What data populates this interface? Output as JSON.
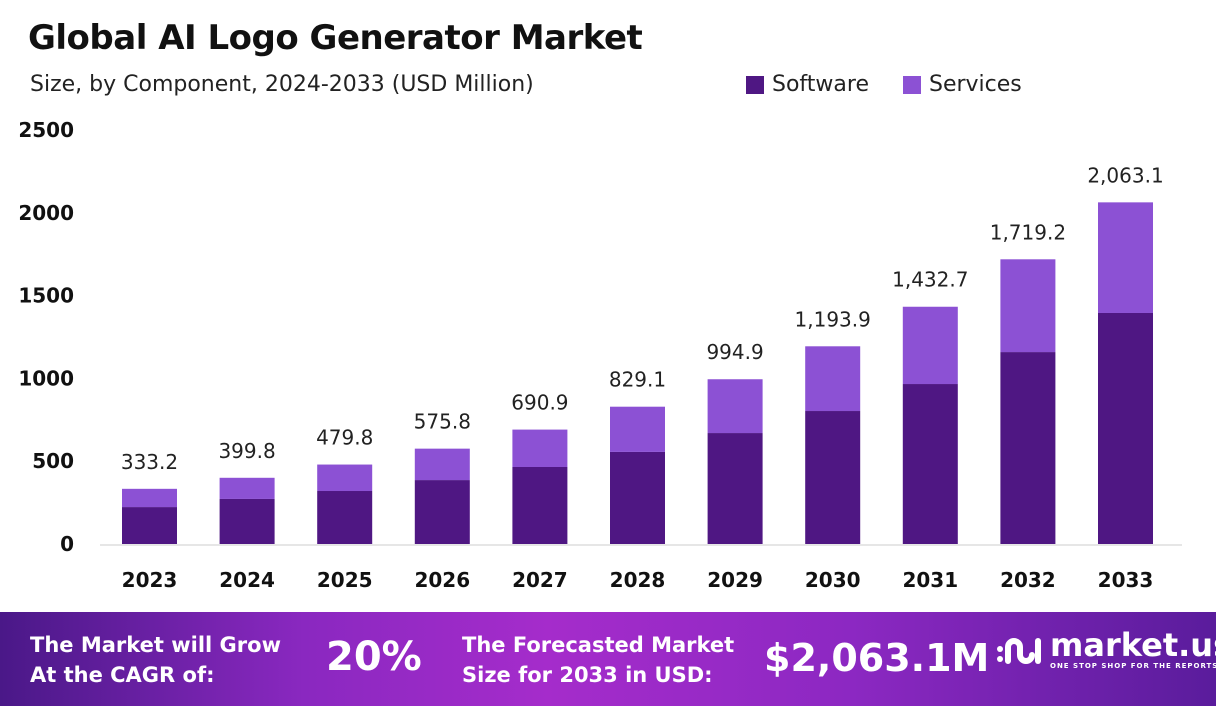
{
  "chart_data": {
    "type": "bar",
    "stacked": true,
    "title": "Global AI Logo Generator Market",
    "subtitle": "Size, by Component, 2024-2033 (USD Million)",
    "categories": [
      "2023",
      "2024",
      "2025",
      "2026",
      "2027",
      "2028",
      "2029",
      "2030",
      "2031",
      "2032",
      "2033"
    ],
    "series": [
      {
        "name": "Software",
        "color": "#4f1783",
        "values": [
          223,
          272,
          320,
          386,
          465,
          556,
          670,
          803,
          966,
          1159,
          1395
        ]
      },
      {
        "name": "Services",
        "color": "#8c51d4",
        "values": [
          110.2,
          127.8,
          159.8,
          189.8,
          225.9,
          273.1,
          324.9,
          390.9,
          466.7,
          560.2,
          668.1
        ]
      }
    ],
    "totals": [
      "333.2",
      "399.8",
      "479.8",
      "575.8",
      "690.9",
      "829.1",
      "994.9",
      "1,193.9",
      "1,432.7",
      "1,719.2",
      "2,063.1"
    ],
    "totals_values": [
      333.2,
      399.8,
      479.8,
      575.8,
      690.9,
      829.1,
      994.9,
      1193.9,
      1432.7,
      1719.2,
      2063.1
    ],
    "yticks": [
      "0",
      "500",
      "1000",
      "1500",
      "2000",
      "2500"
    ],
    "ylim": [
      0,
      2500
    ],
    "grid": false,
    "legend": "top-right"
  },
  "banner": {
    "cagr_label_1": "The Market will Grow",
    "cagr_label_2": "At the CAGR of:",
    "cagr": "20%",
    "forecast_label_1": "The Forecasted Market",
    "forecast_label_2": "Size for 2033 in USD:",
    "forecast": "$2,063.1M",
    "logo_name": "market.us",
    "logo_tag": "ONE STOP SHOP FOR THE REPORTS"
  }
}
